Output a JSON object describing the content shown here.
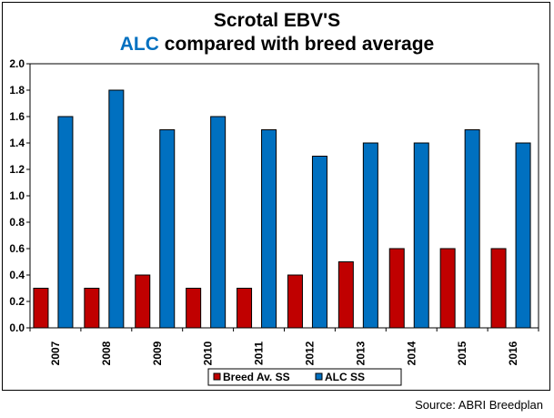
{
  "title": {
    "line1": "Scrotal EBV'S",
    "line2_accent": "ALC",
    "line2_rest": " compared with breed average"
  },
  "source": "Source: ABRI Breedplan",
  "colors": {
    "accent": "#0070C0",
    "breed_bar": "#C00000",
    "alc_bar": "#0070C0"
  },
  "chart_data": {
    "type": "bar",
    "title": "Scrotal EBV'S ALC compared with breed average",
    "xlabel": "",
    "ylabel": "",
    "categories": [
      "2007",
      "2008",
      "2009",
      "2010",
      "2011",
      "2012",
      "2013",
      "2014",
      "2015",
      "2016"
    ],
    "series": [
      {
        "name": "Breed Av. SS",
        "color": "#C00000",
        "values": [
          0.3,
          0.3,
          0.4,
          0.3,
          0.3,
          0.4,
          0.5,
          0.6,
          0.6,
          0.6
        ]
      },
      {
        "name": "ALC SS",
        "color": "#0070C0",
        "values": [
          1.6,
          1.8,
          1.5,
          1.6,
          1.5,
          1.3,
          1.4,
          1.4,
          1.5,
          1.4
        ]
      }
    ],
    "ylim": [
      0,
      2.0
    ],
    "yticks": [
      "0.0",
      "0.2",
      "0.4",
      "0.6",
      "0.8",
      "1.0",
      "1.2",
      "1.4",
      "1.6",
      "1.8",
      "2.0"
    ],
    "grid": false,
    "legend": "bottom"
  }
}
